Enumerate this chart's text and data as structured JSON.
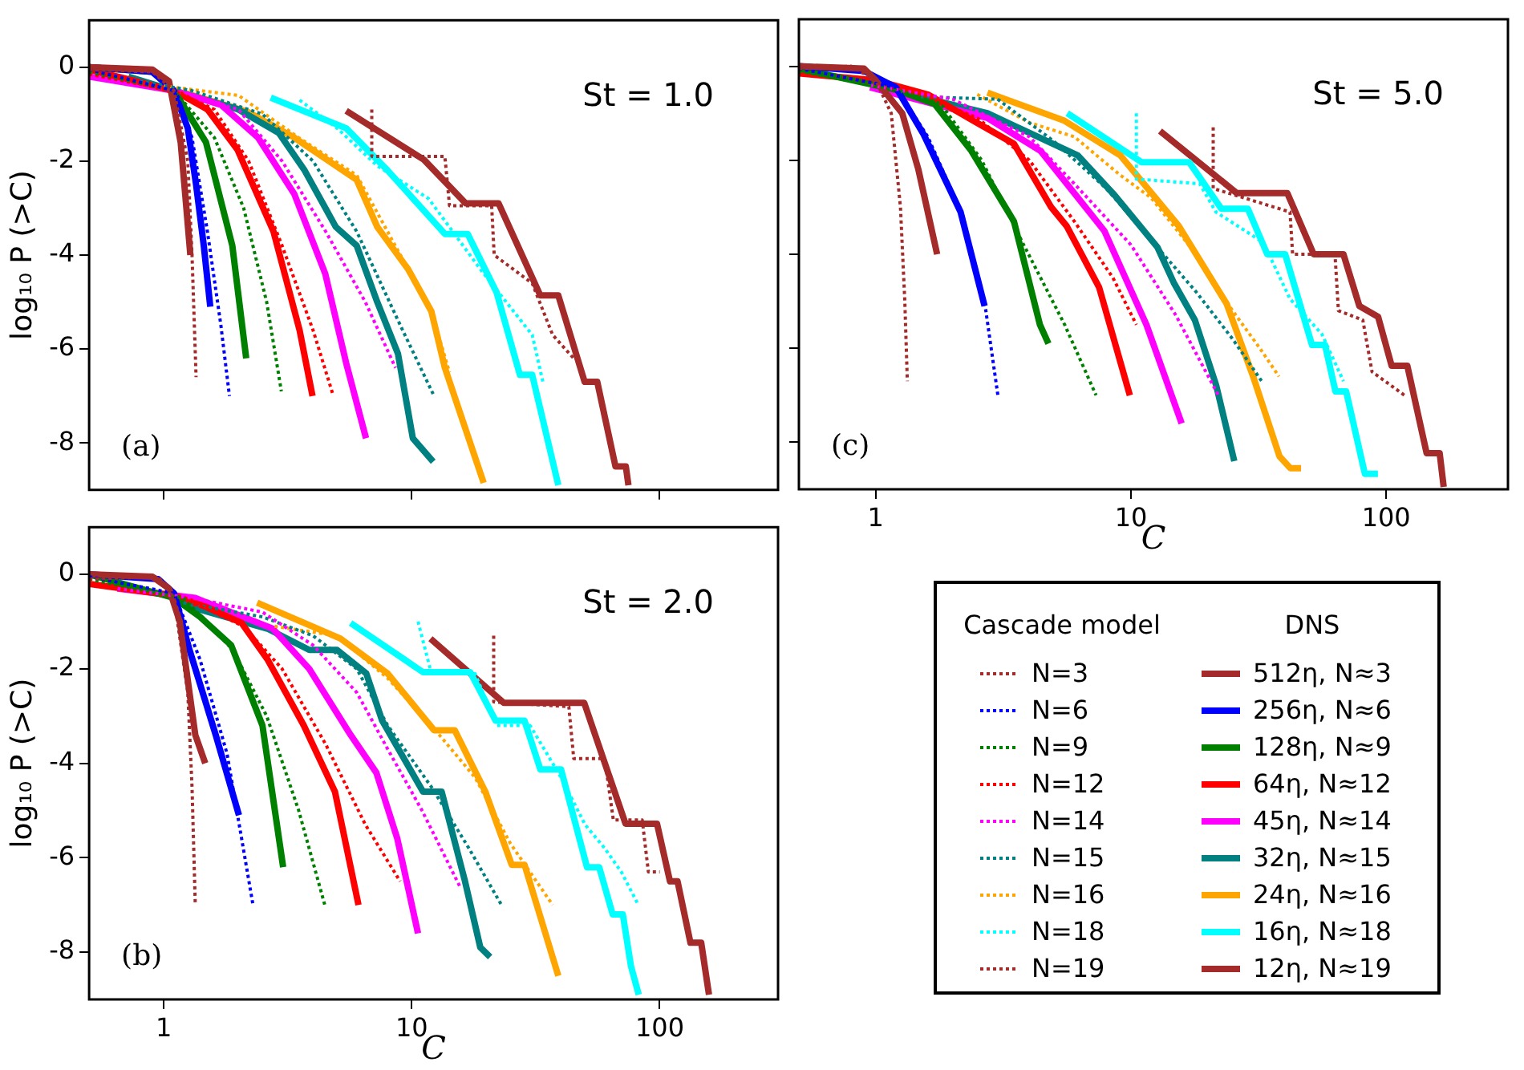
{
  "chart_data": [
    {
      "type": "line",
      "ylabel": "log₁₀ P (>C)",
      "annotations": [
        "St = 1.0",
        "(a)"
      ],
      "log": "x",
      "xlim": [
        0.5,
        300
      ],
      "xticks": [
        1,
        10,
        100
      ],
      "ylim": [
        -9,
        1
      ],
      "yticks": [
        0,
        -2,
        -4,
        -6,
        -8
      ],
      "tick_labels": "y",
      "series": [
        {
          "color": "#a52a2a",
          "line_style": "dotted",
          "x": [
            0.5,
            0.9,
            1.1,
            1.25,
            1.3,
            1.35
          ],
          "values": [
            -0.05,
            -0.1,
            -0.5,
            -2,
            -4,
            -6.6
          ]
        },
        {
          "color": "#a52a2a",
          "line_style": "solid",
          "x": [
            0.5,
            0.9,
            1.05,
            1.17,
            1.22,
            1.28
          ],
          "values": [
            0,
            -0.05,
            -0.3,
            -1.6,
            -2.7,
            -4
          ]
        },
        {
          "color": "#0000ff",
          "line_style": "dotted",
          "x": [
            0.5,
            1.1,
            1.3,
            1.5,
            1.7,
            1.84
          ],
          "values": [
            -0.05,
            -0.5,
            -1.5,
            -3.5,
            -5.5,
            -7
          ]
        },
        {
          "color": "#0000ff",
          "line_style": "solid",
          "x": [
            0.5,
            0.9,
            1.1,
            1.25,
            1.35,
            1.45,
            1.54
          ],
          "values": [
            0,
            -0.1,
            -0.5,
            -1.3,
            -2.5,
            -3.8,
            -5.1
          ]
        },
        {
          "color": "#008000",
          "line_style": "dotted",
          "x": [
            0.5,
            1.1,
            1.6,
            2.1,
            2.6,
            2.98
          ],
          "values": [
            -0.1,
            -0.5,
            -1.5,
            -3,
            -5,
            -6.9
          ]
        },
        {
          "color": "#008000",
          "line_style": "solid",
          "x": [
            0.5,
            0.9,
            1.1,
            1.48,
            1.89,
            2.15
          ],
          "values": [
            0,
            -0.1,
            -0.5,
            -1.6,
            -3.8,
            -6.2
          ]
        },
        {
          "color": "#ff0000",
          "line_style": "dotted",
          "x": [
            0.5,
            1.1,
            1.6,
            2.2,
            3,
            4,
            4.83
          ],
          "values": [
            -0.15,
            -0.5,
            -0.9,
            -2,
            -3.8,
            -5.6,
            -7
          ]
        },
        {
          "color": "#ff0000",
          "line_style": "solid",
          "x": [
            0.5,
            1.1,
            1.5,
            1.98,
            2.77,
            3.53,
            3.98
          ],
          "values": [
            -0.05,
            -0.5,
            -0.9,
            -1.75,
            -3.5,
            -5.6,
            -7
          ]
        },
        {
          "color": "#ff00ff",
          "line_style": "dotted",
          "x": [
            0.5,
            1.1,
            2,
            3,
            4.5,
            6.5,
            8.6
          ],
          "values": [
            -0.2,
            -0.5,
            -0.9,
            -2,
            -3.5,
            -5,
            -6.4
          ]
        },
        {
          "color": "#ff00ff",
          "line_style": "solid",
          "x": [
            0.5,
            1.1,
            1.7,
            2.4,
            3.36,
            4.48,
            5.44,
            6.54
          ],
          "values": [
            -0.2,
            -0.5,
            -0.8,
            -1.5,
            -2.7,
            -4.4,
            -6.3,
            -7.9
          ]
        },
        {
          "color": "#008080",
          "line_style": "dotted",
          "x": [
            0.8,
            1.3,
            2.5,
            4,
            6,
            9,
            12.3
          ],
          "values": [
            -0.3,
            -0.5,
            -1,
            -2,
            -3.5,
            -5.5,
            -7
          ]
        },
        {
          "color": "#008080",
          "line_style": "solid",
          "x": [
            0.72,
            1.1,
            2,
            2.91,
            3.7,
            4.94,
            6,
            7.26,
            8.8,
            10.1,
            12.2
          ],
          "values": [
            -0.2,
            -0.5,
            -0.9,
            -1.4,
            -2.2,
            -3.4,
            -3.8,
            -5,
            -6.1,
            -7.9,
            -8.4
          ]
        },
        {
          "color": "#ffa500",
          "line_style": "dotted",
          "x": [
            1,
            2,
            3.5,
            6,
            9,
            12,
            14.2
          ],
          "values": [
            -0.4,
            -0.6,
            -1.5,
            -2.3,
            -4,
            -5.2,
            -6.5
          ]
        },
        {
          "color": "#ffa500",
          "line_style": "solid",
          "x": [
            1.22,
            2.18,
            3.36,
            6,
            7.26,
            9.67,
            12,
            13.6,
            19.5
          ],
          "values": [
            -0.55,
            -0.95,
            -1.5,
            -2.4,
            -3.4,
            -4.3,
            -5.2,
            -6.4,
            -8.85
          ]
        },
        {
          "color": "#00ffff",
          "line_style": "dotted",
          "x": [
            3.53,
            5,
            7.26,
            11.7,
            18.9,
            30.6,
            33.8
          ],
          "values": [
            -0.7,
            -1.3,
            -2.1,
            -2.8,
            -4.3,
            -5.7,
            -6.7
          ]
        },
        {
          "color": "#00ffff",
          "line_style": "solid",
          "x": [
            2.7,
            5.44,
            8,
            13.6,
            16.8,
            22,
            27.3,
            30.6,
            39
          ],
          "values": [
            -0.65,
            -1.3,
            -2.2,
            -3.55,
            -3.55,
            -4.8,
            -6.55,
            -6.55,
            -8.9
          ]
        },
        {
          "color": "#a52a2a",
          "line_style": "dotted",
          "x": [
            6.9,
            6.9,
            13.6,
            14.2,
            21,
            21.5,
            30.6,
            37,
            45
          ],
          "values": [
            -0.9,
            -1.9,
            -1.9,
            -2.95,
            -2.95,
            -4,
            -4.6,
            -5.7,
            -6.2
          ]
        },
        {
          "color": "#a52a2a",
          "line_style": "solid",
          "x": [
            5.44,
            11.2,
            16.5,
            22.4,
            33,
            39,
            49.8,
            56,
            66.3,
            73,
            74.8
          ],
          "values": [
            -0.93,
            -1.97,
            -2.9,
            -2.9,
            -4.86,
            -4.86,
            -6.7,
            -6.7,
            -8.5,
            -8.5,
            -8.9
          ]
        }
      ]
    },
    {
      "type": "line",
      "xlabel": "C",
      "annotations": [
        "St = 5.0",
        "(c)",
        "Cascade model",
        "DNS"
      ],
      "log": "x",
      "xlim": [
        0.5,
        300
      ],
      "xticks": [
        1,
        10,
        100
      ],
      "ylim": [
        -9,
        1
      ],
      "yticks": [
        0,
        -2,
        -4,
        -6,
        -8
      ],
      "tick_labels": "x",
      "legend": "bottom",
      "series": [
        {
          "name": "N=3",
          "color": "#a52a2a",
          "line_style": "dotted",
          "x": [
            0.5,
            0.8,
            1,
            1.15,
            1.25,
            1.3,
            1.33
          ],
          "values": [
            -0.05,
            0,
            -0.3,
            -1,
            -3,
            -5,
            -6.7
          ]
        },
        {
          "name": "512η, N≈3",
          "color": "#a52a2a",
          "line_style": "solid",
          "x": [
            0.5,
            0.9,
            1,
            1.27,
            1.47,
            1.74
          ],
          "values": [
            0,
            -0.05,
            -0.3,
            -1,
            -2.2,
            -4
          ]
        },
        {
          "name": "N=6",
          "color": "#0000ff",
          "line_style": "dotted",
          "x": [
            0.5,
            1.2,
            1.6,
            2.2,
            2.7,
            3.01
          ],
          "values": [
            -0.05,
            -0.45,
            -1.5,
            -3.2,
            -5.2,
            -7
          ]
        },
        {
          "name": "256η, N≈6",
          "color": "#0000ff",
          "line_style": "solid",
          "x": [
            0.5,
            0.9,
            1.2,
            1.54,
            2.15,
            2.67
          ],
          "values": [
            0,
            -0.1,
            -0.45,
            -1.45,
            -3.1,
            -5.1
          ]
        },
        {
          "name": "N=9",
          "color": "#008000",
          "line_style": "dotted",
          "x": [
            0.5,
            1.2,
            1.8,
            2.6,
            3.8,
            5.5,
            7.3
          ],
          "values": [
            -0.1,
            -0.5,
            -0.8,
            -2,
            -3.8,
            -5.5,
            -7
          ]
        },
        {
          "name": "128η, N≈9",
          "color": "#008000",
          "line_style": "solid",
          "x": [
            0.5,
            1.2,
            1.7,
            2.37,
            3.48,
            4.4,
            4.75
          ],
          "values": [
            -0.05,
            -0.5,
            -0.8,
            -1.8,
            -3.3,
            -5.5,
            -5.9
          ]
        },
        {
          "name": "N=12",
          "color": "#ff0000",
          "line_style": "dotted",
          "x": [
            0.7,
            1.5,
            2.5,
            4,
            6,
            8.5,
            10.5
          ],
          "values": [
            -0.2,
            -0.6,
            -1.1,
            -2,
            -3.3,
            -4.5,
            -5.5
          ]
        },
        {
          "name": "64η, N≈12",
          "color": "#ff0000",
          "line_style": "solid",
          "x": [
            0.5,
            1,
            1.6,
            2.49,
            3.48,
            4.87,
            5.6,
            7.5,
            9.9
          ],
          "values": [
            -0.15,
            -0.3,
            -0.6,
            -1.2,
            -1.65,
            -3,
            -3.4,
            -4.7,
            -7
          ]
        },
        {
          "name": "N=14",
          "color": "#ff00ff",
          "line_style": "dotted",
          "x": [
            0.95,
            2,
            4,
            6,
            10,
            15,
            22
          ],
          "values": [
            -0.4,
            -0.7,
            -1.5,
            -2.5,
            -3.8,
            -5.3,
            -7
          ]
        },
        {
          "name": "45η, N≈14",
          "color": "#ff00ff",
          "line_style": "solid",
          "x": [
            0.95,
            2.74,
            4.42,
            7.86,
            11.5,
            15.8
          ],
          "values": [
            -0.45,
            -1.1,
            -1.8,
            -3.5,
            -5.5,
            -7.6
          ]
        },
        {
          "name": "N=15",
          "color": "#008080",
          "line_style": "dotted",
          "x": [
            1.5,
            3,
            5,
            8,
            12,
            18,
            25,
            33
          ],
          "values": [
            -0.65,
            -0.7,
            -1.6,
            -2.6,
            -3.7,
            -4.8,
            -5.8,
            -6.75
          ]
        },
        {
          "name": "32η, N≈15",
          "color": "#008080",
          "line_style": "solid",
          "x": [
            1.54,
            2.74,
            6.2,
            8.65,
            12.7,
            14.7,
            17.8,
            21.6,
            25.4
          ],
          "values": [
            -0.67,
            -1,
            -1.9,
            -2.75,
            -3.85,
            -4.6,
            -5.4,
            -6.8,
            -8.4
          ]
        },
        {
          "name": "N=16",
          "color": "#ffa500",
          "line_style": "dotted",
          "x": [
            2.5,
            4,
            6,
            9,
            12,
            18,
            25,
            32,
            38
          ],
          "values": [
            -0.6,
            -1.2,
            -1.5,
            -2.3,
            -2.8,
            -4,
            -5.2,
            -6,
            -6.6
          ]
        },
        {
          "name": "24η, N≈16",
          "color": "#ffa500",
          "line_style": "solid",
          "x": [
            2.74,
            5.49,
            9.1,
            15.4,
            23.7,
            30.1,
            38.2,
            42.1,
            46.4
          ],
          "values": [
            -0.56,
            -1.16,
            -1.9,
            -3.4,
            -5.05,
            -6.6,
            -8.3,
            -8.55,
            -8.55
          ]
        },
        {
          "name": "N=18",
          "color": "#00ffff",
          "line_style": "dotted",
          "x": [
            10.5,
            10.5,
            18.6,
            21.5,
            33,
            42,
            56,
            68
          ],
          "values": [
            -1,
            -2.4,
            -2.5,
            -3.1,
            -3.75,
            -4.95,
            -5.7,
            -6.7
          ]
        },
        {
          "name": "16η, N≈18",
          "color": "#00ffff",
          "line_style": "solid",
          "x": [
            5.63,
            11,
            16.9,
            22.6,
            28.7,
            34.2,
            40.2,
            51.2,
            57.6,
            63.3,
            69.7,
            82.5,
            92.8
          ],
          "values": [
            -1,
            -2.04,
            -2.04,
            -3.03,
            -3.03,
            -4,
            -4,
            -5.93,
            -5.93,
            -6.92,
            -6.92,
            -8.67,
            -8.67
          ]
        },
        {
          "name": "N=19",
          "color": "#a52a2a",
          "line_style": "dotted",
          "x": [
            21,
            21,
            42,
            43,
            63,
            65,
            81,
            88,
            118
          ],
          "values": [
            -1.3,
            -2.6,
            -3.1,
            -4,
            -4,
            -5.2,
            -5.4,
            -6.5,
            -7
          ]
        },
        {
          "name": "12η, N≈19",
          "color": "#a52a2a",
          "line_style": "solid",
          "x": [
            13,
            26,
            41,
            52,
            68,
            78.5,
            93,
            105,
            121,
            144,
            162,
            168
          ],
          "values": [
            -1.38,
            -2.7,
            -2.7,
            -4,
            -4,
            -5.1,
            -5.33,
            -6.37,
            -6.37,
            -8.23,
            -8.23,
            -8.95
          ]
        }
      ]
    },
    {
      "type": "line",
      "xlabel": "C",
      "ylabel": "log₁₀ P (>C)",
      "annotations": [
        "St = 2.0",
        "(b)"
      ],
      "log": "x",
      "xlim": [
        0.5,
        300
      ],
      "xticks": [
        1,
        10,
        100
      ],
      "ylim": [
        -9,
        1
      ],
      "yticks": [
        0,
        -2,
        -4,
        -6,
        -8
      ],
      "series": [
        {
          "color": "#a52a2a",
          "line_style": "dotted",
          "x": [
            0.5,
            0.95,
            1.1,
            1.25,
            1.3,
            1.34
          ],
          "values": [
            -0.1,
            -0.05,
            -0.5,
            -2.5,
            -4.5,
            -7
          ]
        },
        {
          "color": "#a52a2a",
          "line_style": "solid",
          "x": [
            0.5,
            0.9,
            1.05,
            1.16,
            1.34,
            1.47
          ],
          "values": [
            0,
            -0.05,
            -0.3,
            -1,
            -3.4,
            -4
          ]
        },
        {
          "color": "#0000ff",
          "line_style": "dotted",
          "x": [
            0.5,
            1.1,
            1.4,
            1.8,
            2,
            2.29
          ],
          "values": [
            -0.05,
            -0.4,
            -1.8,
            -3.8,
            -5.2,
            -7
          ]
        },
        {
          "color": "#0000ff",
          "line_style": "solid",
          "x": [
            0.5,
            0.95,
            1.1,
            1.27,
            1.62,
            2.01
          ],
          "values": [
            0,
            -0.1,
            -0.4,
            -1.6,
            -3.4,
            -5.1
          ]
        },
        {
          "color": "#008000",
          "line_style": "dotted",
          "x": [
            0.5,
            1.2,
            1.9,
            2.6,
            3.5,
            4.46
          ],
          "values": [
            -0.1,
            -0.5,
            -1.6,
            -3,
            -5,
            -7
          ]
        },
        {
          "color": "#008000",
          "line_style": "solid",
          "x": [
            0.5,
            1.1,
            1.4,
            1.87,
            2.5,
            3.03
          ],
          "values": [
            0,
            -0.5,
            -0.9,
            -1.5,
            -3.2,
            -6.2
          ]
        },
        {
          "color": "#ff0000",
          "line_style": "dotted",
          "x": [
            0.5,
            1.2,
            2.1,
            3,
            4.5,
            6.5,
            8.98
          ],
          "values": [
            -0.2,
            -0.5,
            -1.1,
            -2,
            -3.6,
            -5.3,
            -6.5
          ]
        },
        {
          "color": "#ff0000",
          "line_style": "solid",
          "x": [
            0.5,
            1.1,
            1.5,
            2.06,
            2.62,
            3.67,
            4.9,
            6.1
          ],
          "values": [
            -0.2,
            -0.45,
            -0.7,
            -1.03,
            -1.8,
            -3.2,
            -4.6,
            -7
          ]
        },
        {
          "color": "#ff00ff",
          "line_style": "dotted",
          "x": [
            0.65,
            1.3,
            2.5,
            4,
            6,
            8,
            11,
            15.6
          ],
          "values": [
            -0.3,
            -0.5,
            -0.8,
            -1.5,
            -2.5,
            -3.7,
            -5,
            -6.6
          ]
        },
        {
          "color": "#ff00ff",
          "line_style": "solid",
          "x": [
            0.65,
            1.34,
            2.75,
            3.86,
            5.67,
            7.2,
            8.75,
            10.6
          ],
          "values": [
            -0.3,
            -0.5,
            -1.15,
            -2,
            -3.4,
            -4.2,
            -5.6,
            -7.6
          ]
        },
        {
          "color": "#008080",
          "line_style": "dotted",
          "x": [
            1.2,
            2.5,
            4,
            6,
            8,
            12,
            17,
            23
          ],
          "values": [
            -0.6,
            -0.9,
            -1.3,
            -2,
            -3.2,
            -4.5,
            -5.8,
            -7
          ]
        },
        {
          "color": "#008080",
          "line_style": "solid",
          "x": [
            1.21,
            2.62,
            3.86,
            5,
            6.56,
            7.6,
            11.1,
            13.2,
            16.4,
            18.9,
            20.7
          ],
          "values": [
            -0.65,
            -1.15,
            -1.6,
            -1.6,
            -2.1,
            -3.1,
            -4.6,
            -4.6,
            -6.5,
            -7.9,
            -8.1
          ]
        },
        {
          "color": "#ffa500",
          "line_style": "dotted",
          "x": [
            2.8,
            5,
            8,
            12,
            18,
            25,
            37
          ],
          "values": [
            -1.1,
            -1.3,
            -2.2,
            -3.2,
            -4.3,
            -5.7,
            -7
          ]
        },
        {
          "color": "#ffa500",
          "line_style": "solid",
          "x": [
            2.38,
            5.16,
            8,
            12.3,
            14.9,
            19.8,
            25.3,
            28.5,
            39
          ],
          "values": [
            -0.6,
            -1.36,
            -2.1,
            -3.3,
            -3.3,
            -4.6,
            -6.15,
            -6.15,
            -8.5
          ]
        },
        {
          "color": "#00ffff",
          "line_style": "dotted",
          "x": [
            10.6,
            12,
            18,
            22,
            30,
            40,
            50,
            60,
            70,
            82
          ],
          "values": [
            -1,
            -2.1,
            -2.1,
            -3.2,
            -3.2,
            -4.3,
            -5.3,
            -5.8,
            -6.3,
            -7
          ]
        },
        {
          "color": "#00ffff",
          "line_style": "solid",
          "x": [
            5.67,
            11.1,
            17.2,
            21.8,
            28.5,
            33,
            40,
            50.9,
            57,
            64.6,
            71,
            76.6,
            82.3
          ],
          "values": [
            -1.03,
            -2.07,
            -2.07,
            -3.1,
            -3.1,
            -4.13,
            -4.13,
            -6.2,
            -6.2,
            -7.2,
            -7.2,
            -8.3,
            -8.9
          ]
        },
        {
          "color": "#a52a2a",
          "line_style": "dotted",
          "x": [
            21.4,
            21.4,
            43,
            45,
            60,
            65,
            85,
            90,
            100
          ],
          "values": [
            -1.3,
            -2.7,
            -2.8,
            -3.9,
            -3.9,
            -5.2,
            -5.2,
            -6.3,
            -6.3
          ]
        },
        {
          "color": "#a52a2a",
          "line_style": "solid",
          "x": [
            11.9,
            23.5,
            49.6,
            72.8,
            97.5,
            110,
            118,
            133,
            147,
            158
          ],
          "values": [
            -1.36,
            -2.72,
            -2.72,
            -5.28,
            -5.28,
            -6.5,
            -6.5,
            -7.8,
            -7.8,
            -8.9
          ]
        }
      ]
    }
  ]
}
